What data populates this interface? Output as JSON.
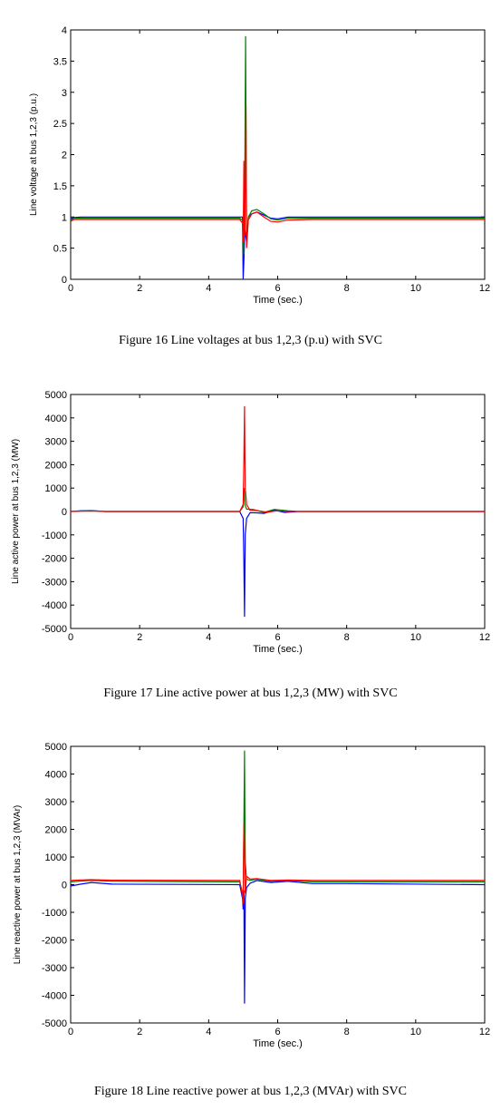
{
  "captions": {
    "fig16": "Figure 16 Line voltages at bus 1,2,3 (p.u) with SVC",
    "fig17": "Figure 17 Line active power at bus 1,2,3 (MW) with SVC",
    "fig18": "Figure 18 Line reactive power at bus 1,2,3 (MVAr) with SVC"
  },
  "chart_data": [
    {
      "type": "line",
      "xlabel": "Time (sec.)",
      "ylabel": "Line voltage at bus 1,2,3 (p.u.)",
      "xlim": [
        0,
        12
      ],
      "ylim": [
        0,
        4
      ],
      "xticks": [
        "0",
        "2",
        "4",
        "6",
        "8",
        "10",
        "12"
      ],
      "yticks": [
        "0",
        "0.5",
        "1",
        "1.5",
        "2",
        "2.5",
        "3",
        "3.5",
        "4"
      ],
      "grid": false,
      "series": [
        {
          "color": "#0000ff",
          "x": [
            0,
            0.1,
            0.3,
            1,
            4.9,
            4.98,
            5.0,
            5.02,
            5.05,
            5.1,
            5.15,
            5.25,
            5.4,
            5.6,
            5.8,
            6.0,
            6.3,
            7,
            12
          ],
          "y": [
            0.97,
            0.99,
            1.0,
            1.0,
            1.0,
            1.0,
            0.0,
            0.3,
            0.8,
            0.6,
            1.0,
            1.05,
            1.08,
            1.03,
            0.98,
            0.97,
            1.0,
            1.0,
            1.0
          ]
        },
        {
          "color": "#008000",
          "x": [
            0,
            0.1,
            0.3,
            1,
            4.9,
            4.98,
            5.0,
            5.02,
            5.05,
            5.07,
            5.1,
            5.15,
            5.25,
            5.4,
            5.6,
            5.8,
            6.0,
            6.3,
            7,
            12
          ],
          "y": [
            0.95,
            0.98,
            0.98,
            0.98,
            0.98,
            0.95,
            0.7,
            0.4,
            1.9,
            3.9,
            0.6,
            1.0,
            1.1,
            1.12,
            1.05,
            0.97,
            0.95,
            0.98,
            0.98,
            0.98
          ]
        },
        {
          "color": "#ff0000",
          "x": [
            0,
            0.1,
            0.3,
            1,
            4.9,
            4.98,
            5.0,
            5.02,
            5.05,
            5.08,
            5.1,
            5.15,
            5.25,
            5.4,
            5.6,
            5.8,
            6.0,
            6.3,
            7,
            12
          ],
          "y": [
            0.93,
            0.96,
            0.96,
            0.96,
            0.96,
            0.9,
            0.6,
            1.9,
            0.7,
            2.8,
            0.5,
            0.95,
            1.05,
            1.08,
            1.0,
            0.93,
            0.92,
            0.95,
            0.96,
            0.96
          ]
        }
      ]
    },
    {
      "type": "line",
      "xlabel": "Time (sec.)",
      "ylabel": "Line active power at bus 1,2,3 (MW)",
      "xlim": [
        0,
        12
      ],
      "ylim": [
        -5000,
        5000
      ],
      "xticks": [
        "0",
        "2",
        "4",
        "6",
        "8",
        "10",
        "12"
      ],
      "yticks": [
        "-5000",
        "-4000",
        "-3000",
        "-2000",
        "-1000",
        "0",
        "1000",
        "2000",
        "3000",
        "4000",
        "5000"
      ],
      "grid": false,
      "series": [
        {
          "color": "#0000ff",
          "x": [
            0,
            0.3,
            0.6,
            1,
            4.9,
            5.0,
            5.02,
            5.04,
            5.06,
            5.1,
            5.2,
            5.4,
            5.6,
            5.9,
            6.2,
            6.6,
            12
          ],
          "y": [
            0,
            30,
            40,
            0,
            0,
            -300,
            -2200,
            -4500,
            -1000,
            -300,
            -50,
            -60,
            -80,
            60,
            -40,
            0,
            0
          ]
        },
        {
          "color": "#008000",
          "x": [
            0,
            0.3,
            0.6,
            1,
            4.9,
            5.0,
            5.03,
            5.05,
            5.1,
            5.3,
            5.6,
            5.9,
            6.3,
            6.6,
            12
          ],
          "y": [
            0,
            20,
            30,
            0,
            0,
            200,
            1000,
            300,
            100,
            80,
            -40,
            90,
            30,
            0,
            0
          ]
        },
        {
          "color": "#ff0000",
          "x": [
            0,
            0.3,
            0.6,
            1,
            4.9,
            5.0,
            5.02,
            5.04,
            5.06,
            5.1,
            5.2,
            5.4,
            5.7,
            6.0,
            6.3,
            12
          ],
          "y": [
            0,
            10,
            20,
            0,
            0,
            300,
            2200,
            4500,
            1000,
            300,
            50,
            40,
            -30,
            30,
            0,
            0
          ]
        }
      ]
    },
    {
      "type": "line",
      "xlabel": "Time (sec.)",
      "ylabel": "Line reactive power at bus 1,2,3 (MVAr)",
      "xlim": [
        0,
        12
      ],
      "ylim": [
        -5000,
        5000
      ],
      "xticks": [
        "0",
        "2",
        "4",
        "6",
        "8",
        "10",
        "12"
      ],
      "yticks": [
        "-5000",
        "-4000",
        "-3000",
        "-2000",
        "-1000",
        "0",
        "1000",
        "2000",
        "3000",
        "4000",
        "5000"
      ],
      "grid": false,
      "series": [
        {
          "color": "#0000ff",
          "x": [
            0,
            0.3,
            0.6,
            1.2,
            4.9,
            4.98,
            5.0,
            5.02,
            5.04,
            5.06,
            5.1,
            5.2,
            5.4,
            5.8,
            6.3,
            7,
            8,
            12
          ],
          "y": [
            -50,
            20,
            80,
            20,
            0,
            -500,
            -900,
            -200,
            -4300,
            -500,
            -100,
            50,
            150,
            80,
            120,
            40,
            40,
            0
          ]
        },
        {
          "color": "#008000",
          "x": [
            0,
            0.3,
            0.6,
            1.2,
            4.9,
            4.98,
            5.0,
            5.02,
            5.04,
            5.06,
            5.1,
            5.2,
            5.4,
            5.8,
            6.3,
            7,
            8,
            12
          ],
          "y": [
            100,
            130,
            150,
            120,
            100,
            -300,
            -500,
            2200,
            4850,
            800,
            200,
            150,
            200,
            120,
            150,
            100,
            100,
            100
          ]
        },
        {
          "color": "#ff0000",
          "x": [
            0,
            0.3,
            0.6,
            1.2,
            4.9,
            4.98,
            5.0,
            5.02,
            5.04,
            5.06,
            5.1,
            5.2,
            5.4,
            5.8,
            6.3,
            7,
            8,
            12
          ],
          "y": [
            150,
            170,
            180,
            160,
            150,
            -400,
            -700,
            2200,
            1500,
            -300,
            300,
            200,
            220,
            150,
            170,
            150,
            150,
            150
          ]
        }
      ]
    }
  ]
}
